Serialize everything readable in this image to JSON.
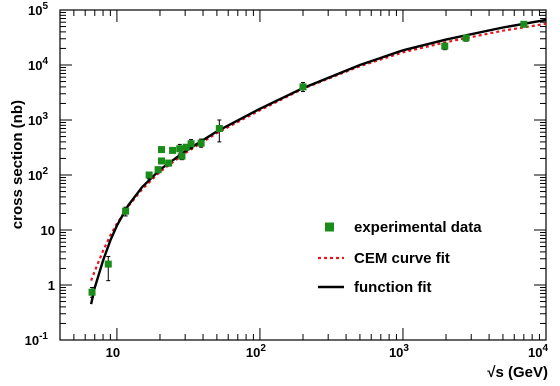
{
  "chart_data": {
    "type": "scatter",
    "title": "",
    "xlabel": "√s (GeV)",
    "ylabel": "cross section (nb)",
    "xscale": "log",
    "yscale": "log",
    "xlim": [
      4,
      10000
    ],
    "ylim": [
      0.1,
      100000
    ],
    "grid": false,
    "legend_position": "bottom-right",
    "x_tick_labels": [
      {
        "value": 10,
        "base": "10",
        "exp": ""
      },
      {
        "value": 100,
        "base": "10",
        "exp": "2"
      },
      {
        "value": 1000,
        "base": "10",
        "exp": "3"
      },
      {
        "value": 10000,
        "base": "10",
        "exp": "4"
      }
    ],
    "y_tick_labels": [
      {
        "value": 0.1,
        "base": "10",
        "exp": "-1"
      },
      {
        "value": 1,
        "base": "1",
        "exp": ""
      },
      {
        "value": 10,
        "base": "10",
        "exp": ""
      },
      {
        "value": 100,
        "base": "10",
        "exp": "2"
      },
      {
        "value": 1000,
        "base": "10",
        "exp": "3"
      },
      {
        "value": 10000,
        "base": "10",
        "exp": "4"
      },
      {
        "value": 100000,
        "base": "10",
        "exp": "5"
      }
    ],
    "series": [
      {
        "name": "experimental data",
        "kind": "points",
        "color": "#1a8c1a",
        "points": [
          {
            "x": 6.7,
            "y": 0.74,
            "yerr": [
              0.6,
              0.9
            ]
          },
          {
            "x": 8.7,
            "y": 2.4,
            "yerr": [
              1.2,
              3.3
            ]
          },
          {
            "x": 11.5,
            "y": 22,
            "yerr": [
              18,
              26
            ]
          },
          {
            "x": 16.8,
            "y": 100,
            "yerr": [
              85,
              112
            ]
          },
          {
            "x": 19.4,
            "y": 125,
            "yerr": [
              110,
              140
            ]
          },
          {
            "x": 20.5,
            "y": 180
          },
          {
            "x": 20.5,
            "y": 290
          },
          {
            "x": 23,
            "y": 165,
            "yerr": [
              145,
              185
            ]
          },
          {
            "x": 24.5,
            "y": 280
          },
          {
            "x": 27.5,
            "y": 300,
            "yerr": [
              240,
              360
            ]
          },
          {
            "x": 28.5,
            "y": 220,
            "yerr": [
              190,
              250
            ]
          },
          {
            "x": 30.5,
            "y": 320
          },
          {
            "x": 33,
            "y": 370,
            "yerr": [
              300,
              440
            ]
          },
          {
            "x": 38.8,
            "y": 380,
            "yerr": [
              320,
              450
            ]
          },
          {
            "x": 52,
            "y": 700,
            "yerr": [
              400,
              1000
            ]
          },
          {
            "x": 200,
            "y": 4000,
            "yerr": [
              3300,
              4800
            ]
          },
          {
            "x": 1960,
            "y": 22000,
            "yerr": [
              19000,
              25000
            ]
          },
          {
            "x": 2760,
            "y": 31000,
            "yerr": [
              27000,
              35000
            ]
          },
          {
            "x": 7000,
            "y": 55000
          }
        ]
      },
      {
        "name": "CEM curve fit",
        "kind": "line",
        "color": "#e8151b",
        "dash": "dotted",
        "points": [
          {
            "x": 6.6,
            "y": 1.2
          },
          {
            "x": 7,
            "y": 1.8
          },
          {
            "x": 8,
            "y": 4.2
          },
          {
            "x": 9,
            "y": 8
          },
          {
            "x": 10,
            "y": 13
          },
          {
            "x": 12,
            "y": 27
          },
          {
            "x": 15,
            "y": 55
          },
          {
            "x": 20,
            "y": 115
          },
          {
            "x": 30,
            "y": 250
          },
          {
            "x": 50,
            "y": 580
          },
          {
            "x": 100,
            "y": 1500
          },
          {
            "x": 200,
            "y": 3700
          },
          {
            "x": 500,
            "y": 9500
          },
          {
            "x": 1000,
            "y": 17000
          },
          {
            "x": 2000,
            "y": 26000
          },
          {
            "x": 5000,
            "y": 42000
          },
          {
            "x": 10000,
            "y": 56000
          }
        ]
      },
      {
        "name": "function fit",
        "kind": "line",
        "color": "#000000",
        "dash": "solid",
        "points": [
          {
            "x": 6.6,
            "y": 0.45
          },
          {
            "x": 7,
            "y": 0.9
          },
          {
            "x": 8,
            "y": 2.8
          },
          {
            "x": 9,
            "y": 6.5
          },
          {
            "x": 10,
            "y": 12
          },
          {
            "x": 12,
            "y": 28
          },
          {
            "x": 15,
            "y": 60
          },
          {
            "x": 20,
            "y": 125
          },
          {
            "x": 30,
            "y": 270
          },
          {
            "x": 50,
            "y": 620
          },
          {
            "x": 100,
            "y": 1600
          },
          {
            "x": 200,
            "y": 3800
          },
          {
            "x": 500,
            "y": 10000
          },
          {
            "x": 1000,
            "y": 18500
          },
          {
            "x": 2000,
            "y": 29000
          },
          {
            "x": 5000,
            "y": 48000
          },
          {
            "x": 10000,
            "y": 66000
          }
        ]
      }
    ]
  }
}
